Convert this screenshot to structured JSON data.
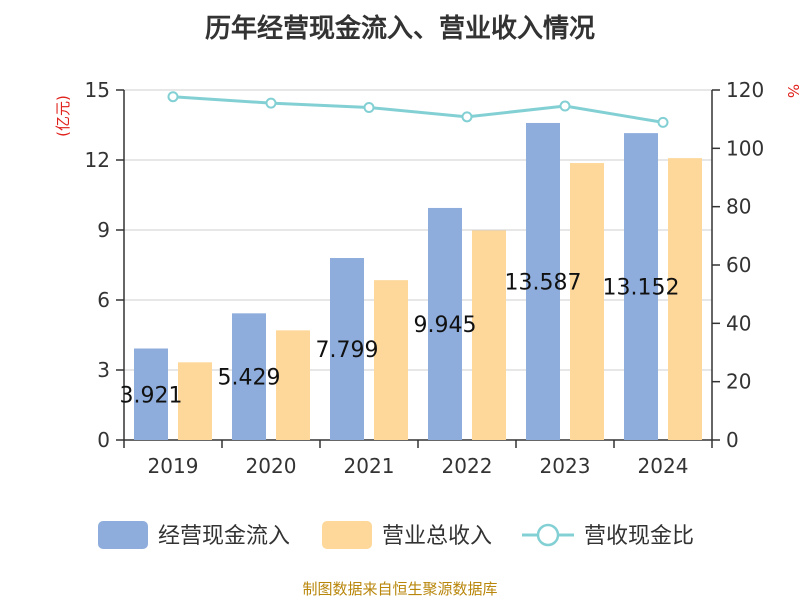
{
  "chart_data": {
    "type": "bar",
    "title": "历年经营现金流入、营业收入情况",
    "categories": [
      "2019",
      "2020",
      "2021",
      "2022",
      "2023",
      "2024"
    ],
    "series": [
      {
        "name": "经营现金流入",
        "kind": "bar",
        "axis": "left",
        "color": "#8eaddc",
        "values": [
          3.921,
          5.429,
          7.799,
          9.945,
          13.587,
          13.152
        ],
        "labels": [
          "3.921",
          "5.429",
          "7.799",
          "9.945",
          "13.587",
          "13.152"
        ]
      },
      {
        "name": "营业总收入",
        "kind": "bar",
        "axis": "left",
        "color": "#fdd89a",
        "values": [
          3.33,
          4.7,
          6.85,
          8.98,
          11.87,
          12.08
        ]
      },
      {
        "name": "营收现金比",
        "kind": "line",
        "axis": "right",
        "color": "#83d0d4",
        "values": [
          117.7,
          115.5,
          114.0,
          110.8,
          114.5,
          108.9
        ]
      }
    ],
    "y_left": {
      "unit_label": "(亿元)",
      "ylim": [
        0,
        15
      ],
      "ticks": [
        0,
        3,
        6,
        9,
        12,
        15
      ]
    },
    "y_right": {
      "unit_label": "%",
      "ylim": [
        0,
        120
      ],
      "ticks": [
        0,
        20,
        40,
        60,
        80,
        100,
        120
      ]
    },
    "grid": true,
    "legend_position": "bottom"
  },
  "footer": {
    "source": "制图数据来自恒生聚源数据库"
  }
}
